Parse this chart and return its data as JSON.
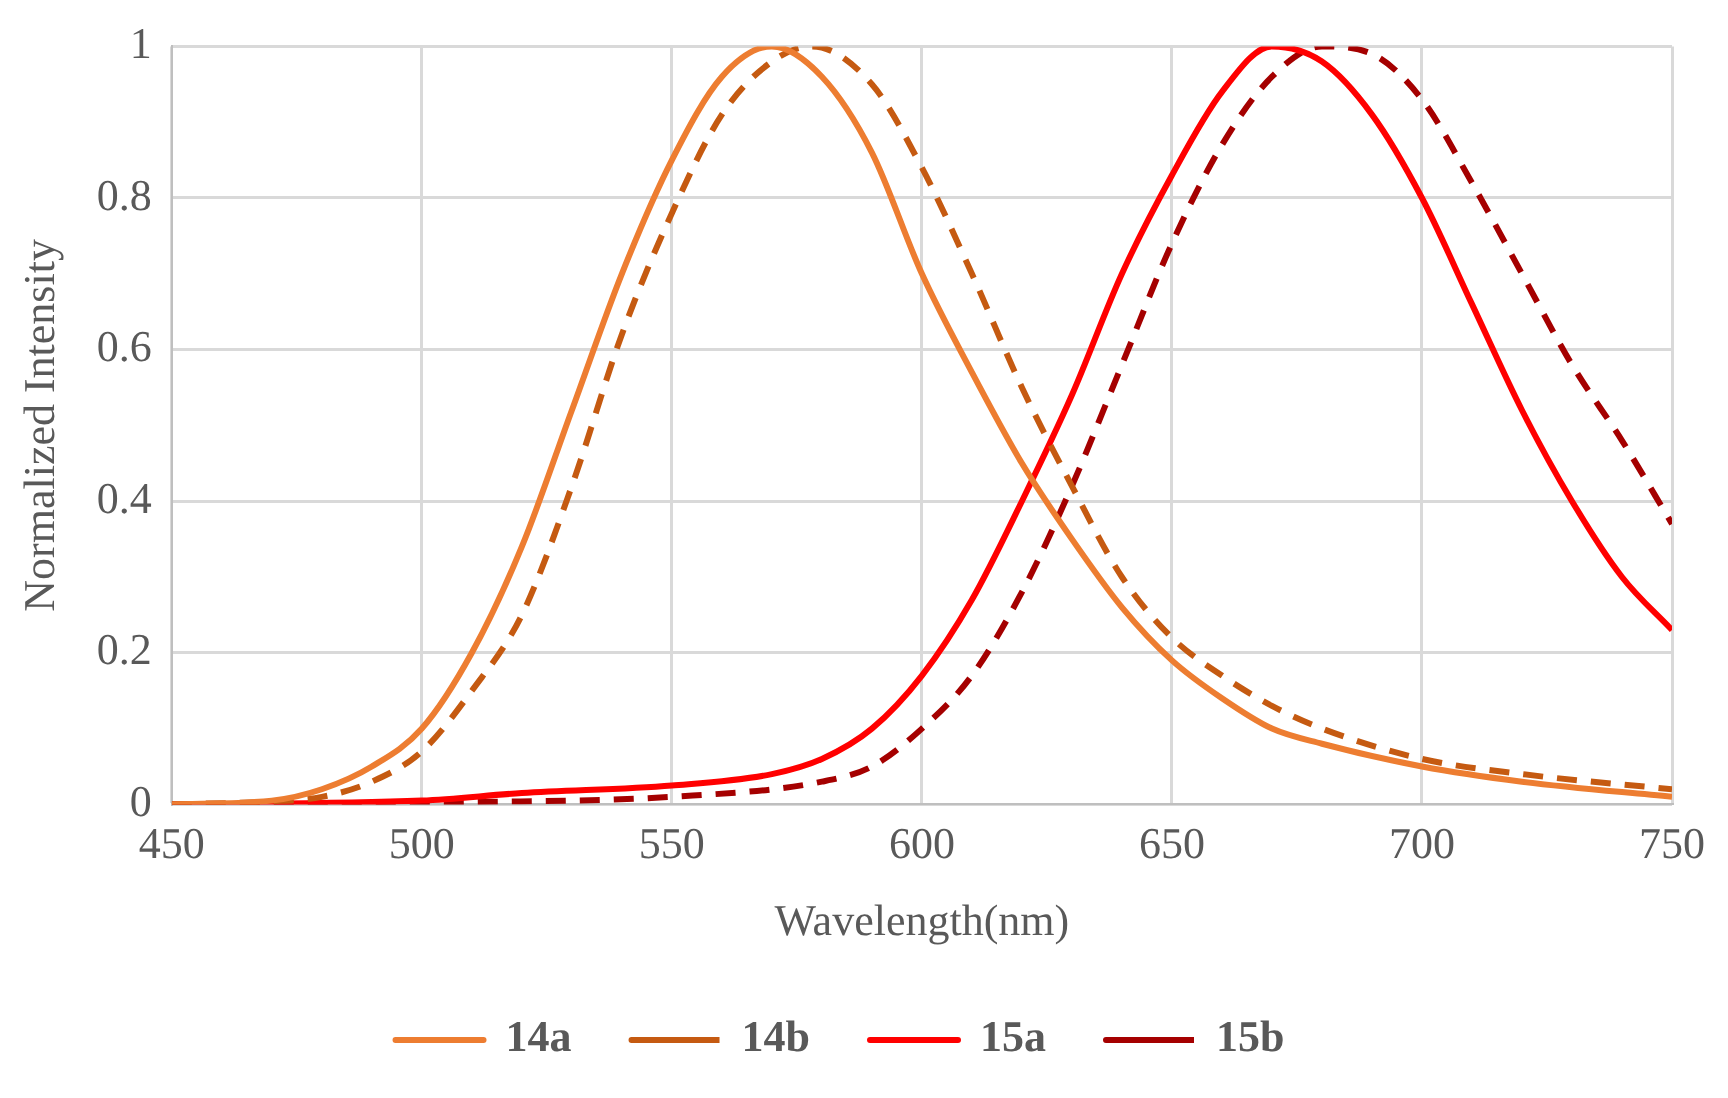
{
  "chart_data": {
    "type": "line",
    "xlabel": "Wavelength(nm)",
    "ylabel": "Normalized Intensity",
    "xlim": [
      450,
      750
    ],
    "xticks": [
      450,
      500,
      550,
      600,
      650,
      700,
      750
    ],
    "ylim": [
      0,
      1
    ],
    "yticks": [
      0,
      0.2,
      0.4,
      0.6,
      0.8,
      1
    ],
    "grid": true,
    "legend": "bottom",
    "marker": "none",
    "series": [
      {
        "name": "14a",
        "color": "#ed7d31",
        "line_style": "solid",
        "x": [
          450,
          470,
          480,
          490,
          500,
          510,
          520,
          530,
          540,
          550,
          560,
          570,
          580,
          590,
          600,
          610,
          620,
          630,
          640,
          650,
          660,
          670,
          680,
          700,
          720,
          750
        ],
        "values": [
          0,
          0.005,
          0.02,
          0.05,
          0.1,
          0.2,
          0.34,
          0.52,
          0.7,
          0.85,
          0.96,
          1,
          0.96,
          0.86,
          0.7,
          0.57,
          0.45,
          0.35,
          0.26,
          0.19,
          0.14,
          0.1,
          0.08,
          0.05,
          0.03,
          0.01
        ]
      },
      {
        "name": "14b",
        "color": "#c55a11",
        "line_style": "dashed",
        "x": [
          450,
          470,
          480,
          490,
          500,
          510,
          520,
          530,
          540,
          550,
          560,
          570,
          578,
          590,
          600,
          610,
          620,
          630,
          640,
          650,
          660,
          670,
          680,
          700,
          720,
          750
        ],
        "values": [
          0,
          0.004,
          0.01,
          0.03,
          0.07,
          0.15,
          0.25,
          0.42,
          0.62,
          0.78,
          0.91,
          0.98,
          1,
          0.95,
          0.84,
          0.7,
          0.55,
          0.42,
          0.3,
          0.22,
          0.17,
          0.13,
          0.1,
          0.06,
          0.04,
          0.02
        ]
      },
      {
        "name": "15a",
        "color": "#ff0000",
        "line_style": "solid",
        "x": [
          450,
          500,
          520,
          550,
          570,
          580,
          590,
          600,
          610,
          620,
          630,
          640,
          650,
          660,
          670,
          680,
          690,
          700,
          710,
          720,
          730,
          740,
          750
        ],
        "values": [
          0,
          0.005,
          0.015,
          0.025,
          0.04,
          0.06,
          0.1,
          0.17,
          0.27,
          0.4,
          0.54,
          0.7,
          0.83,
          0.94,
          1,
          0.98,
          0.91,
          0.8,
          0.66,
          0.52,
          0.4,
          0.3,
          0.23
        ]
      },
      {
        "name": "15b",
        "color": "#a50000",
        "line_style": "dashed",
        "x": [
          450,
          510,
          550,
          580,
          590,
          600,
          610,
          620,
          630,
          640,
          650,
          660,
          670,
          680,
          690,
          700,
          710,
          720,
          730,
          740,
          750
        ],
        "values": [
          0,
          0.003,
          0.01,
          0.03,
          0.05,
          0.1,
          0.17,
          0.28,
          0.42,
          0.58,
          0.74,
          0.87,
          0.96,
          1,
          0.99,
          0.93,
          0.82,
          0.7,
          0.58,
          0.48,
          0.37
        ]
      }
    ]
  }
}
